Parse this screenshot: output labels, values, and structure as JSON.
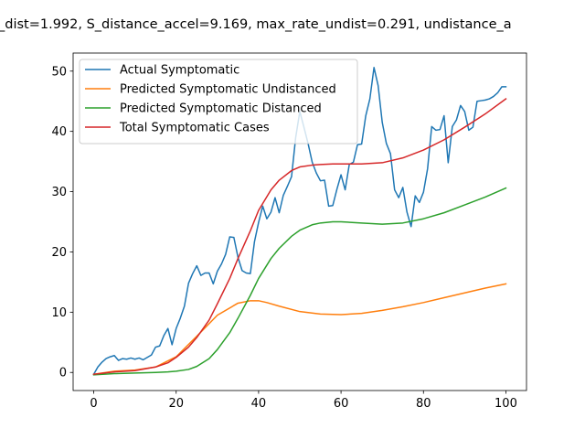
{
  "chart_data": {
    "type": "line",
    "title": "_dist=1.992, S_distance_accel=9.169, max_rate_undist=0.291, undistance_a",
    "xlabel": "",
    "ylabel": "",
    "xlim": [
      -5,
      105
    ],
    "ylim": [
      -3,
      53
    ],
    "xticks": [
      0,
      20,
      40,
      60,
      80,
      100
    ],
    "yticks": [
      0,
      10,
      20,
      30,
      40,
      50
    ],
    "grid": false,
    "legend_position": "top-left",
    "series": [
      {
        "name": "Actual Symptomatic",
        "color": "#1f77b4",
        "x": [
          0,
          1,
          2,
          3,
          4,
          5,
          6,
          7,
          8,
          9,
          10,
          11,
          12,
          13,
          14,
          15,
          16,
          17,
          18,
          19,
          20,
          21,
          22,
          23,
          24,
          25,
          26,
          27,
          28,
          29,
          30,
          31,
          32,
          33,
          34,
          35,
          36,
          37,
          38,
          39,
          40,
          41,
          42,
          43,
          44,
          45,
          46,
          47,
          48,
          49,
          50,
          51,
          52,
          53,
          54,
          55,
          56,
          57,
          58,
          59,
          60,
          61,
          62,
          63,
          64,
          65,
          66,
          67,
          68,
          69,
          70,
          71,
          72,
          73,
          74,
          75,
          76,
          77,
          78,
          79,
          80,
          81,
          82,
          83,
          84,
          85,
          86,
          87,
          88,
          89,
          90,
          91,
          92,
          93,
          94,
          95,
          96,
          97,
          98,
          99,
          100
        ],
        "values": [
          -0.3,
          0.9,
          1.7,
          2.3,
          2.6,
          2.8,
          2.0,
          2.3,
          2.2,
          2.4,
          2.2,
          2.4,
          2.1,
          2.5,
          2.9,
          4.2,
          4.4,
          6.1,
          7.3,
          4.6,
          7.3,
          9.0,
          11.0,
          14.8,
          16.4,
          17.7,
          16.1,
          16.5,
          16.5,
          14.7,
          16.8,
          18.0,
          19.6,
          22.5,
          22.4,
          19.1,
          16.9,
          16.5,
          16.4,
          21.7,
          24.9,
          27.6,
          25.5,
          26.6,
          29.0,
          26.5,
          29.4,
          30.9,
          32.5,
          39.0,
          43.3,
          40.7,
          38.0,
          34.9,
          33.1,
          31.8,
          31.9,
          27.6,
          27.7,
          30.4,
          32.8,
          30.3,
          34.5,
          34.9,
          37.8,
          37.9,
          42.6,
          45.4,
          50.6,
          47.6,
          41.5,
          38.0,
          36.3,
          30.3,
          29.0,
          30.7,
          26.6,
          24.2,
          29.3,
          28.2,
          29.9,
          33.8,
          40.8,
          40.2,
          40.3,
          42.6,
          34.8,
          40.8,
          41.9,
          44.3,
          43.3,
          40.2,
          40.7,
          45.0,
          45.1,
          45.2,
          45.4,
          45.8,
          46.4,
          47.4,
          47.4
        ]
      },
      {
        "name": "Predicted Symptomatic Undistanced",
        "color": "#ff7f0e",
        "x": [
          0,
          5,
          10,
          15,
          20,
          25,
          30,
          35,
          38,
          40,
          42,
          45,
          50,
          55,
          60,
          65,
          70,
          75,
          80,
          85,
          90,
          95,
          100
        ],
        "values": [
          -0.3,
          0.2,
          0.4,
          0.9,
          2.6,
          6.0,
          9.5,
          11.5,
          11.9,
          11.9,
          11.6,
          11.0,
          10.1,
          9.7,
          9.6,
          9.8,
          10.3,
          10.9,
          11.6,
          12.4,
          13.2,
          14.0,
          14.7
        ]
      },
      {
        "name": "Predicted Symptomatic Distanced",
        "color": "#2ca02c",
        "x": [
          0,
          5,
          10,
          15,
          18,
          20,
          23,
          25,
          28,
          30,
          33,
          35,
          38,
          40,
          43,
          45,
          48,
          50,
          53,
          55,
          58,
          60,
          65,
          70,
          75,
          80,
          85,
          90,
          95,
          100
        ],
        "values": [
          -0.4,
          -0.2,
          -0.1,
          0.0,
          0.1,
          0.2,
          0.5,
          1.0,
          2.3,
          3.8,
          6.6,
          9.0,
          12.8,
          15.6,
          18.9,
          20.6,
          22.6,
          23.6,
          24.5,
          24.8,
          25.0,
          25.0,
          24.8,
          24.6,
          24.8,
          25.5,
          26.5,
          27.8,
          29.1,
          30.6
        ]
      },
      {
        "name": "Total Symptomatic Cases",
        "color": "#d62728",
        "x": [
          0,
          5,
          10,
          15,
          18,
          20,
          23,
          25,
          28,
          30,
          33,
          35,
          38,
          40,
          43,
          45,
          48,
          50,
          53,
          55,
          58,
          60,
          65,
          70,
          75,
          80,
          85,
          90,
          95,
          100
        ],
        "values": [
          -0.3,
          0.1,
          0.3,
          0.9,
          1.6,
          2.5,
          4.2,
          5.8,
          8.7,
          11.4,
          15.6,
          18.9,
          23.5,
          26.9,
          30.3,
          31.9,
          33.5,
          34.1,
          34.4,
          34.5,
          34.6,
          34.6,
          34.6,
          34.8,
          35.6,
          36.9,
          38.6,
          40.7,
          42.9,
          45.4
        ]
      }
    ]
  }
}
